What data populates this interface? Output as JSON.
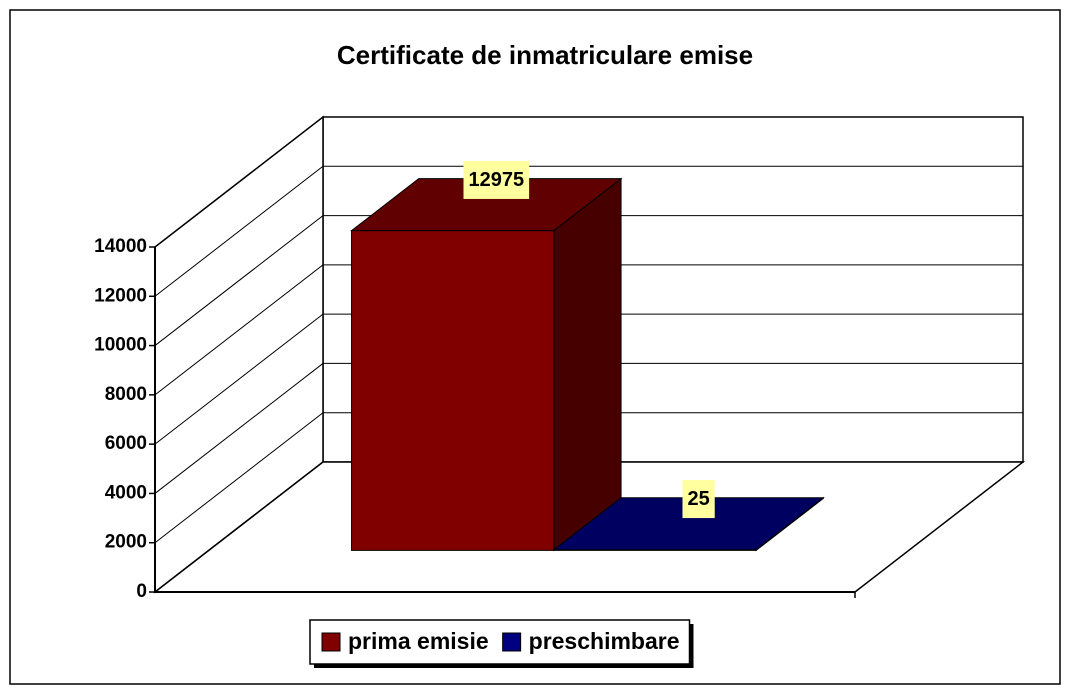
{
  "chart_data": {
    "type": "bar3d",
    "title": "Certificate de inmatriculare emise",
    "series": [
      {
        "name": "prima emisie",
        "color": "#800000",
        "values": [
          12975
        ]
      },
      {
        "name": "preschimbare",
        "color": "#000080",
        "values": [
          25
        ]
      }
    ],
    "ylim": [
      0,
      14000
    ],
    "yticks": [
      0,
      2000,
      4000,
      6000,
      8000,
      10000,
      12000,
      14000
    ],
    "grid": true,
    "legend": "bottom"
  }
}
